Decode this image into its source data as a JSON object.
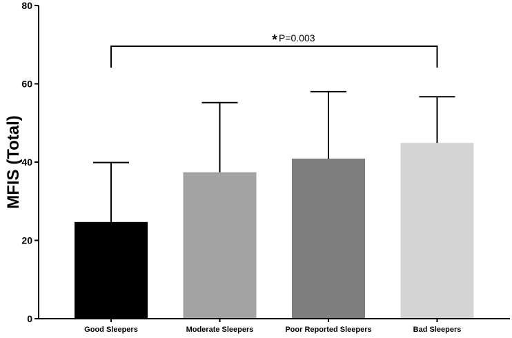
{
  "chart_data": {
    "type": "bar",
    "title": "",
    "xlabel": "",
    "ylabel": "MFIS (Total)",
    "ylim": [
      0,
      80
    ],
    "yticks": [
      "0",
      "20",
      "40",
      "60",
      "80"
    ],
    "grid": false,
    "categories": [
      "Good Sleepers",
      "Moderate Sleepers",
      "Poor Reported Sleepers",
      "Bad Sleepers"
    ],
    "values": [
      24.7,
      37.4,
      40.9,
      44.9
    ],
    "error_upper": [
      39.9,
      55.2,
      58.0,
      56.7
    ],
    "colors": [
      "#000000",
      "#a3a3a3",
      "#7f7f7f",
      "#d4d4d4"
    ],
    "annotation": {
      "from": 0,
      "to": 3,
      "level": 69.6,
      "star": "*",
      "label": "P=0.003"
    }
  }
}
